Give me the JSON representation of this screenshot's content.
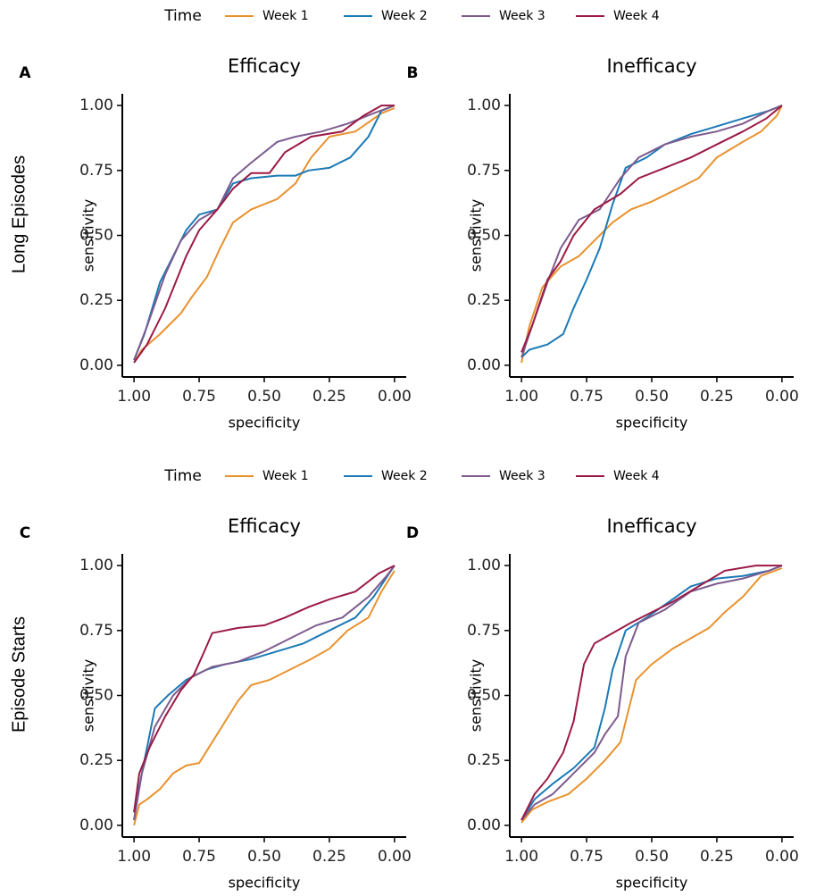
{
  "legends": [
    {
      "title": "Time"
    },
    {
      "title": "Time"
    }
  ],
  "row_labels": [
    "Long Episodes",
    "Episode Starts"
  ],
  "chart_data": [
    {
      "type": "line",
      "panel": "A",
      "title": "Efficacy",
      "xlabel": "specificity",
      "ylabel": "sensitivity",
      "xlim": [
        1.045,
        -0.045
      ],
      "ylim": [
        -0.045,
        1.045
      ],
      "xticks": [
        {
          "value": 1,
          "label": "1.00"
        },
        {
          "value": 0.75,
          "label": "0.75"
        },
        {
          "value": 0.5,
          "label": "0.50"
        },
        {
          "value": 0.25,
          "label": "0.25"
        },
        {
          "value": 0,
          "label": "0.00"
        }
      ],
      "yticks": [
        {
          "value": 0,
          "label": "0.00"
        },
        {
          "value": 0.25,
          "label": "0.25"
        },
        {
          "value": 0.5,
          "label": "0.50"
        },
        {
          "value": 0.75,
          "label": "0.75"
        },
        {
          "value": 1,
          "label": "1.00"
        }
      ],
      "series": [
        {
          "name": "Week 1",
          "color": "#e8922e",
          "x": [
            1,
            0.97,
            0.9,
            0.82,
            0.78,
            0.72,
            0.67,
            0.62,
            0.55,
            0.45,
            0.38,
            0.32,
            0.25,
            0.15,
            0.05,
            0
          ],
          "values": [
            0.01,
            0.06,
            0.12,
            0.2,
            0.26,
            0.34,
            0.45,
            0.55,
            0.6,
            0.64,
            0.7,
            0.8,
            0.88,
            0.9,
            0.97,
            0.99
          ]
        },
        {
          "name": "Week 2",
          "color": "#1b7ab6",
          "x": [
            1,
            0.96,
            0.9,
            0.85,
            0.8,
            0.75,
            0.68,
            0.62,
            0.55,
            0.45,
            0.38,
            0.33,
            0.25,
            0.17,
            0.1,
            0.05,
            0
          ],
          "values": [
            0.02,
            0.12,
            0.32,
            0.42,
            0.52,
            0.58,
            0.6,
            0.7,
            0.72,
            0.73,
            0.73,
            0.75,
            0.76,
            0.8,
            0.88,
            0.98,
            1
          ]
        },
        {
          "name": "Week 3",
          "color": "#7d5b8e",
          "x": [
            1,
            0.95,
            0.88,
            0.82,
            0.75,
            0.68,
            0.62,
            0.55,
            0.45,
            0.38,
            0.28,
            0.18,
            0.08,
            0
          ],
          "values": [
            0.02,
            0.15,
            0.35,
            0.48,
            0.56,
            0.6,
            0.72,
            0.78,
            0.86,
            0.88,
            0.9,
            0.93,
            0.97,
            1
          ]
        },
        {
          "name": "Week 4",
          "color": "#9b1a45",
          "x": [
            1,
            0.95,
            0.88,
            0.8,
            0.75,
            0.68,
            0.62,
            0.55,
            0.48,
            0.42,
            0.32,
            0.2,
            0.12,
            0.05,
            0
          ],
          "values": [
            0.01,
            0.08,
            0.22,
            0.42,
            0.52,
            0.6,
            0.68,
            0.74,
            0.74,
            0.82,
            0.88,
            0.9,
            0.96,
            1,
            1
          ]
        }
      ]
    },
    {
      "type": "line",
      "panel": "B",
      "title": "Inefficacy",
      "xlabel": "specificity",
      "ylabel": "sensitivity",
      "xlim": [
        1.045,
        -0.045
      ],
      "ylim": [
        -0.045,
        1.045
      ],
      "xticks": [
        {
          "value": 1,
          "label": "1.00"
        },
        {
          "value": 0.75,
          "label": "0.75"
        },
        {
          "value": 0.5,
          "label": "0.50"
        },
        {
          "value": 0.25,
          "label": "0.25"
        },
        {
          "value": 0,
          "label": "0.00"
        }
      ],
      "yticks": [
        {
          "value": 0,
          "label": "0.00"
        },
        {
          "value": 0.25,
          "label": "0.25"
        },
        {
          "value": 0.5,
          "label": "0.50"
        },
        {
          "value": 0.75,
          "label": "0.75"
        },
        {
          "value": 1,
          "label": "1.00"
        }
      ],
      "series": [
        {
          "name": "Week 1",
          "color": "#e8922e",
          "x": [
            1,
            0.97,
            0.92,
            0.85,
            0.78,
            0.72,
            0.65,
            0.58,
            0.5,
            0.4,
            0.32,
            0.25,
            0.15,
            0.08,
            0.02,
            0
          ],
          "values": [
            0.01,
            0.15,
            0.3,
            0.38,
            0.42,
            0.48,
            0.55,
            0.6,
            0.63,
            0.68,
            0.72,
            0.8,
            0.86,
            0.9,
            0.96,
            1
          ]
        },
        {
          "name": "Week 2",
          "color": "#1b7ab6",
          "x": [
            1,
            0.97,
            0.9,
            0.84,
            0.8,
            0.75,
            0.7,
            0.65,
            0.6,
            0.52,
            0.45,
            0.35,
            0.25,
            0.15,
            0.05,
            0
          ],
          "values": [
            0.03,
            0.06,
            0.08,
            0.12,
            0.22,
            0.33,
            0.45,
            0.62,
            0.76,
            0.8,
            0.85,
            0.89,
            0.92,
            0.95,
            0.98,
            1
          ]
        },
        {
          "name": "Week 3",
          "color": "#7d5b8e",
          "x": [
            1,
            0.96,
            0.9,
            0.85,
            0.78,
            0.7,
            0.62,
            0.55,
            0.45,
            0.35,
            0.25,
            0.15,
            0.05,
            0
          ],
          "values": [
            0.03,
            0.15,
            0.32,
            0.45,
            0.56,
            0.6,
            0.72,
            0.8,
            0.85,
            0.88,
            0.9,
            0.93,
            0.98,
            1
          ]
        },
        {
          "name": "Week 4",
          "color": "#9b1a45",
          "x": [
            1,
            0.96,
            0.9,
            0.85,
            0.8,
            0.72,
            0.62,
            0.55,
            0.45,
            0.35,
            0.25,
            0.15,
            0.06,
            0
          ],
          "values": [
            0.05,
            0.15,
            0.33,
            0.4,
            0.5,
            0.6,
            0.66,
            0.72,
            0.76,
            0.8,
            0.85,
            0.9,
            0.95,
            1
          ]
        }
      ]
    },
    {
      "type": "line",
      "panel": "C",
      "title": "Efficacy",
      "xlabel": "specificity",
      "ylabel": "sensitivity",
      "xlim": [
        1.045,
        -0.045
      ],
      "ylim": [
        -0.045,
        1.045
      ],
      "xticks": [
        {
          "value": 1,
          "label": "1.00"
        },
        {
          "value": 0.75,
          "label": "0.75"
        },
        {
          "value": 0.5,
          "label": "0.50"
        },
        {
          "value": 0.25,
          "label": "0.25"
        },
        {
          "value": 0,
          "label": "0.00"
        }
      ],
      "yticks": [
        {
          "value": 0,
          "label": "0.00"
        },
        {
          "value": 0.25,
          "label": "0.25"
        },
        {
          "value": 0.5,
          "label": "0.50"
        },
        {
          "value": 0.75,
          "label": "0.75"
        },
        {
          "value": 1,
          "label": "1.00"
        }
      ],
      "series": [
        {
          "name": "Week 1",
          "color": "#e8922e",
          "x": [
            1,
            0.98,
            0.95,
            0.9,
            0.85,
            0.8,
            0.75,
            0.7,
            0.65,
            0.6,
            0.55,
            0.48,
            0.4,
            0.32,
            0.25,
            0.18,
            0.1,
            0.05,
            0
          ],
          "values": [
            0,
            0.08,
            0.1,
            0.14,
            0.2,
            0.23,
            0.24,
            0.32,
            0.4,
            0.48,
            0.54,
            0.56,
            0.6,
            0.64,
            0.68,
            0.75,
            0.8,
            0.9,
            0.98
          ]
        },
        {
          "name": "Week 2",
          "color": "#1b7ab6",
          "x": [
            1,
            0.98,
            0.95,
            0.92,
            0.87,
            0.8,
            0.72,
            0.65,
            0.55,
            0.45,
            0.35,
            0.25,
            0.15,
            0.08,
            0.02,
            0
          ],
          "values": [
            0.02,
            0.15,
            0.3,
            0.45,
            0.5,
            0.56,
            0.6,
            0.62,
            0.64,
            0.67,
            0.7,
            0.75,
            0.8,
            0.88,
            0.97,
            1
          ]
        },
        {
          "name": "Week 3",
          "color": "#7d5b8e",
          "x": [
            1,
            0.97,
            0.92,
            0.85,
            0.78,
            0.7,
            0.6,
            0.5,
            0.4,
            0.3,
            0.2,
            0.1,
            0.03,
            0
          ],
          "values": [
            0.02,
            0.2,
            0.38,
            0.5,
            0.57,
            0.61,
            0.63,
            0.67,
            0.72,
            0.77,
            0.8,
            0.88,
            0.96,
            1
          ]
        },
        {
          "name": "Week 4",
          "color": "#9b1a45",
          "x": [
            1,
            0.98,
            0.94,
            0.88,
            0.82,
            0.77,
            0.73,
            0.7,
            0.6,
            0.5,
            0.42,
            0.33,
            0.25,
            0.15,
            0.06,
            0
          ],
          "values": [
            0.05,
            0.2,
            0.3,
            0.42,
            0.52,
            0.58,
            0.67,
            0.74,
            0.76,
            0.77,
            0.8,
            0.84,
            0.87,
            0.9,
            0.97,
            1
          ]
        }
      ]
    },
    {
      "type": "line",
      "panel": "D",
      "title": "Inefficacy",
      "xlabel": "specificity",
      "ylabel": "sensitivity",
      "xlim": [
        1.045,
        -0.045
      ],
      "ylim": [
        -0.045,
        1.045
      ],
      "xticks": [
        {
          "value": 1,
          "label": "1.00"
        },
        {
          "value": 0.75,
          "label": "0.75"
        },
        {
          "value": 0.5,
          "label": "0.50"
        },
        {
          "value": 0.25,
          "label": "0.25"
        },
        {
          "value": 0,
          "label": "0.00"
        }
      ],
      "yticks": [
        {
          "value": 0,
          "label": "0.00"
        },
        {
          "value": 0.25,
          "label": "0.25"
        },
        {
          "value": 0.5,
          "label": "0.50"
        },
        {
          "value": 0.75,
          "label": "0.75"
        },
        {
          "value": 1,
          "label": "1.00"
        }
      ],
      "series": [
        {
          "name": "Week 1",
          "color": "#e8922e",
          "x": [
            1,
            0.96,
            0.9,
            0.82,
            0.75,
            0.68,
            0.62,
            0.6,
            0.56,
            0.5,
            0.42,
            0.35,
            0.28,
            0.22,
            0.15,
            0.08,
            0
          ],
          "values": [
            0.01,
            0.06,
            0.09,
            0.12,
            0.18,
            0.25,
            0.32,
            0.4,
            0.56,
            0.62,
            0.68,
            0.72,
            0.76,
            0.82,
            0.88,
            0.96,
            0.99
          ]
        },
        {
          "name": "Week 2",
          "color": "#1b7ab6",
          "x": [
            1,
            0.95,
            0.88,
            0.8,
            0.72,
            0.68,
            0.65,
            0.6,
            0.52,
            0.42,
            0.35,
            0.25,
            0.15,
            0.05,
            0
          ],
          "values": [
            0.02,
            0.1,
            0.16,
            0.22,
            0.3,
            0.45,
            0.6,
            0.75,
            0.8,
            0.87,
            0.92,
            0.95,
            0.96,
            0.98,
            1
          ]
        },
        {
          "name": "Week 3",
          "color": "#7d5b8e",
          "x": [
            1,
            0.95,
            0.88,
            0.8,
            0.72,
            0.68,
            0.63,
            0.6,
            0.55,
            0.45,
            0.35,
            0.25,
            0.15,
            0.05,
            0
          ],
          "values": [
            0.02,
            0.08,
            0.12,
            0.2,
            0.28,
            0.35,
            0.42,
            0.65,
            0.78,
            0.83,
            0.9,
            0.93,
            0.95,
            0.98,
            1
          ]
        },
        {
          "name": "Week 4",
          "color": "#9b1a45",
          "x": [
            1,
            0.95,
            0.9,
            0.84,
            0.8,
            0.76,
            0.72,
            0.65,
            0.58,
            0.5,
            0.42,
            0.32,
            0.22,
            0.1,
            0
          ],
          "values": [
            0.02,
            0.12,
            0.18,
            0.28,
            0.4,
            0.62,
            0.7,
            0.74,
            0.78,
            0.82,
            0.86,
            0.92,
            0.98,
            1,
            1
          ]
        }
      ]
    }
  ]
}
